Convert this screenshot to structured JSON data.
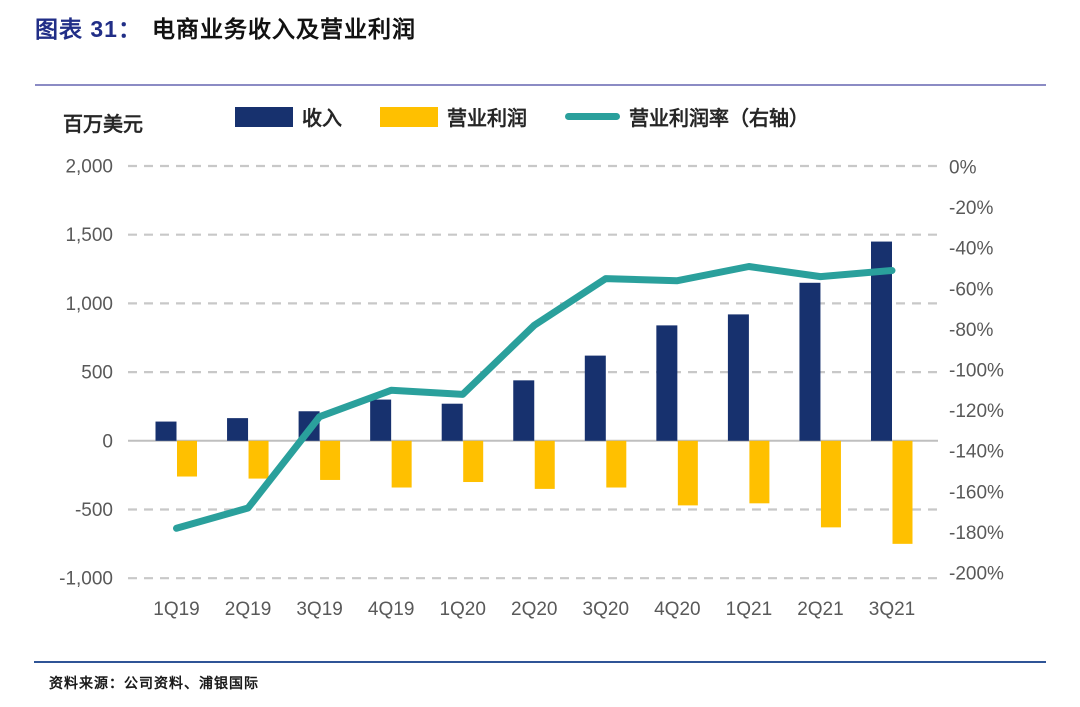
{
  "header": {
    "title_prefix": "图表 31：",
    "title_text": "电商业务收入及营业利润"
  },
  "unit_label": "百万美元",
  "legend": {
    "revenue_label": "收入",
    "op_label": "营业利润",
    "margin_label": "营业利润率（右轴）"
  },
  "footer": {
    "source_text": "资料来源：公司资料、浦银国际"
  },
  "colors": {
    "revenue_bar": "#17316E",
    "op_bar": "#FFC000",
    "margin_line": "#2AA09C",
    "title_accent": "#212E87",
    "axis_text": "#595959",
    "gridline": "#C8C8C8",
    "zero_line": "#BFBFBF",
    "top_rule": "#8B8BC4",
    "bottom_rule": "#2F5496"
  },
  "chart_data": {
    "type": "bar+line",
    "title": "电商业务收入及营业利润",
    "unit": "百万美元 (million USD)",
    "categories": [
      "1Q19",
      "2Q19",
      "3Q19",
      "4Q19",
      "1Q20",
      "2Q20",
      "3Q20",
      "4Q20",
      "1Q21",
      "2Q21",
      "3Q21"
    ],
    "series": [
      {
        "name": "收入",
        "type": "bar",
        "axis": "left",
        "values": [
          140,
          165,
          215,
          300,
          270,
          440,
          620,
          840,
          920,
          1150,
          1450
        ]
      },
      {
        "name": "营业利润",
        "type": "bar",
        "axis": "left",
        "values": [
          -260,
          -275,
          -285,
          -340,
          -300,
          -350,
          -340,
          -470,
          -455,
          -630,
          -750
        ]
      },
      {
        "name": "营业利润率（右轴）",
        "type": "line",
        "axis": "right",
        "values": [
          -178,
          -168,
          -123,
          -110,
          -112,
          -78,
          -55,
          -56,
          -49,
          -54,
          -51
        ]
      }
    ],
    "left_axis": {
      "tick_labels": [
        "2,000",
        "1,500",
        "1,000",
        "500",
        "0",
        "-500",
        "-1,000"
      ],
      "tick_values": [
        2000,
        1500,
        1000,
        500,
        0,
        -500,
        -1000
      ],
      "range": [
        -1000,
        2000
      ]
    },
    "right_axis": {
      "tick_labels": [
        "0%",
        "-20%",
        "-40%",
        "-60%",
        "-80%",
        "-100%",
        "-120%",
        "-140%",
        "-160%",
        "-180%",
        "-200%"
      ],
      "tick_values": [
        0,
        -20,
        -40,
        -60,
        -80,
        -100,
        -120,
        -140,
        -160,
        -180,
        -200
      ],
      "range": [
        -200,
        0
      ]
    },
    "grid": "horizontal-dashed, zero-line-solid",
    "legend_position": "top"
  }
}
